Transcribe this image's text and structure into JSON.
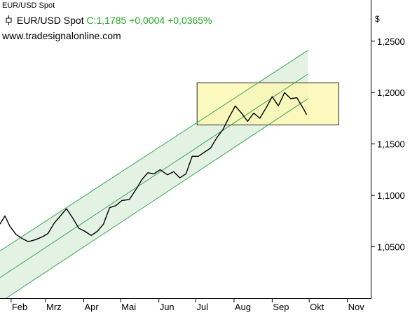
{
  "window_title": "EUR/USD Spot",
  "header": {
    "instrument": "EUR/USD Spot",
    "close_label": "C:1,1785",
    "change_abs": "+0,0004",
    "change_pct": "+0,0365%"
  },
  "website": "www.tradesignalonline.com",
  "colors": {
    "price_line": "#000000",
    "channel_line": "#3aa55a",
    "channel_fill": "#e3f2e3",
    "box_fill": "#fbf8b4",
    "box_border": "#222222",
    "change_text": "#1fa81f"
  },
  "chart_data": {
    "type": "line",
    "y_unit": "$",
    "ylim": [
      1.0,
      1.29
    ],
    "y_ticks": [
      1.05,
      1.1,
      1.15,
      1.2,
      1.25
    ],
    "y_tick_labels": [
      "1,0500",
      "1,1000",
      "1,1500",
      "1,2000",
      "1,2500"
    ],
    "x_range": [
      "2017-01-23",
      "2017-11-20"
    ],
    "x_ticks": [
      {
        "date": "2017-02-01",
        "label": "Feb"
      },
      {
        "date": "2017-03-01",
        "label": "Mrz"
      },
      {
        "date": "2017-04-01",
        "label": "Apr"
      },
      {
        "date": "2017-05-01",
        "label": "Mai"
      },
      {
        "date": "2017-06-01",
        "label": "Jun"
      },
      {
        "date": "2017-07-01",
        "label": "Jul"
      },
      {
        "date": "2017-08-01",
        "label": "Aug"
      },
      {
        "date": "2017-09-01",
        "label": "Sep"
      },
      {
        "date": "2017-10-01",
        "label": "Okt"
      },
      {
        "date": "2017-11-01",
        "label": "Nov"
      }
    ],
    "series": [
      {
        "x": [
          "2017-01-23",
          "2017-01-27",
          "2017-01-31",
          "2017-02-05",
          "2017-02-10",
          "2017-02-15",
          "2017-02-21",
          "2017-02-27",
          "2017-03-03",
          "2017-03-08",
          "2017-03-13",
          "2017-03-18",
          "2017-03-23",
          "2017-03-28",
          "2017-04-02",
          "2017-04-07",
          "2017-04-12",
          "2017-04-17",
          "2017-04-22",
          "2017-04-27",
          "2017-05-02",
          "2017-05-08",
          "2017-05-13",
          "2017-05-18",
          "2017-05-23",
          "2017-05-28",
          "2017-06-02",
          "2017-06-08",
          "2017-06-13",
          "2017-06-18",
          "2017-06-23",
          "2017-06-28",
          "2017-07-03",
          "2017-07-08",
          "2017-07-13",
          "2017-07-18",
          "2017-07-23",
          "2017-07-28",
          "2017-08-02",
          "2017-08-07",
          "2017-08-12",
          "2017-08-17",
          "2017-08-22",
          "2017-08-27",
          "2017-09-01",
          "2017-09-06",
          "2017-09-11",
          "2017-09-16",
          "2017-09-21",
          "2017-09-26",
          "2017-09-29"
        ],
        "y": [
          1.072,
          1.08,
          1.07,
          1.062,
          1.058,
          1.055,
          1.057,
          1.06,
          1.063,
          1.073,
          1.08,
          1.087,
          1.078,
          1.068,
          1.065,
          1.061,
          1.065,
          1.072,
          1.088,
          1.09,
          1.095,
          1.096,
          1.105,
          1.115,
          1.122,
          1.121,
          1.125,
          1.12,
          1.123,
          1.117,
          1.121,
          1.138,
          1.138,
          1.142,
          1.146,
          1.156,
          1.164,
          1.176,
          1.187,
          1.18,
          1.172,
          1.18,
          1.175,
          1.185,
          1.196,
          1.187,
          1.2,
          1.194,
          1.195,
          1.185,
          1.1785
        ]
      }
    ],
    "channel": [
      {
        "start": [
          "2017-01-23",
          1.046
        ],
        "end": [
          "2017-09-30",
          1.241
        ]
      },
      {
        "start": [
          "2017-01-23",
          1.02
        ],
        "end": [
          "2017-09-30",
          1.218
        ]
      },
      {
        "start": [
          "2017-01-23",
          0.996
        ],
        "end": [
          "2017-09-30",
          1.194
        ]
      }
    ],
    "box": {
      "x": [
        "2017-07-02",
        "2017-10-25"
      ],
      "y": [
        1.1685,
        1.2095
      ]
    }
  }
}
